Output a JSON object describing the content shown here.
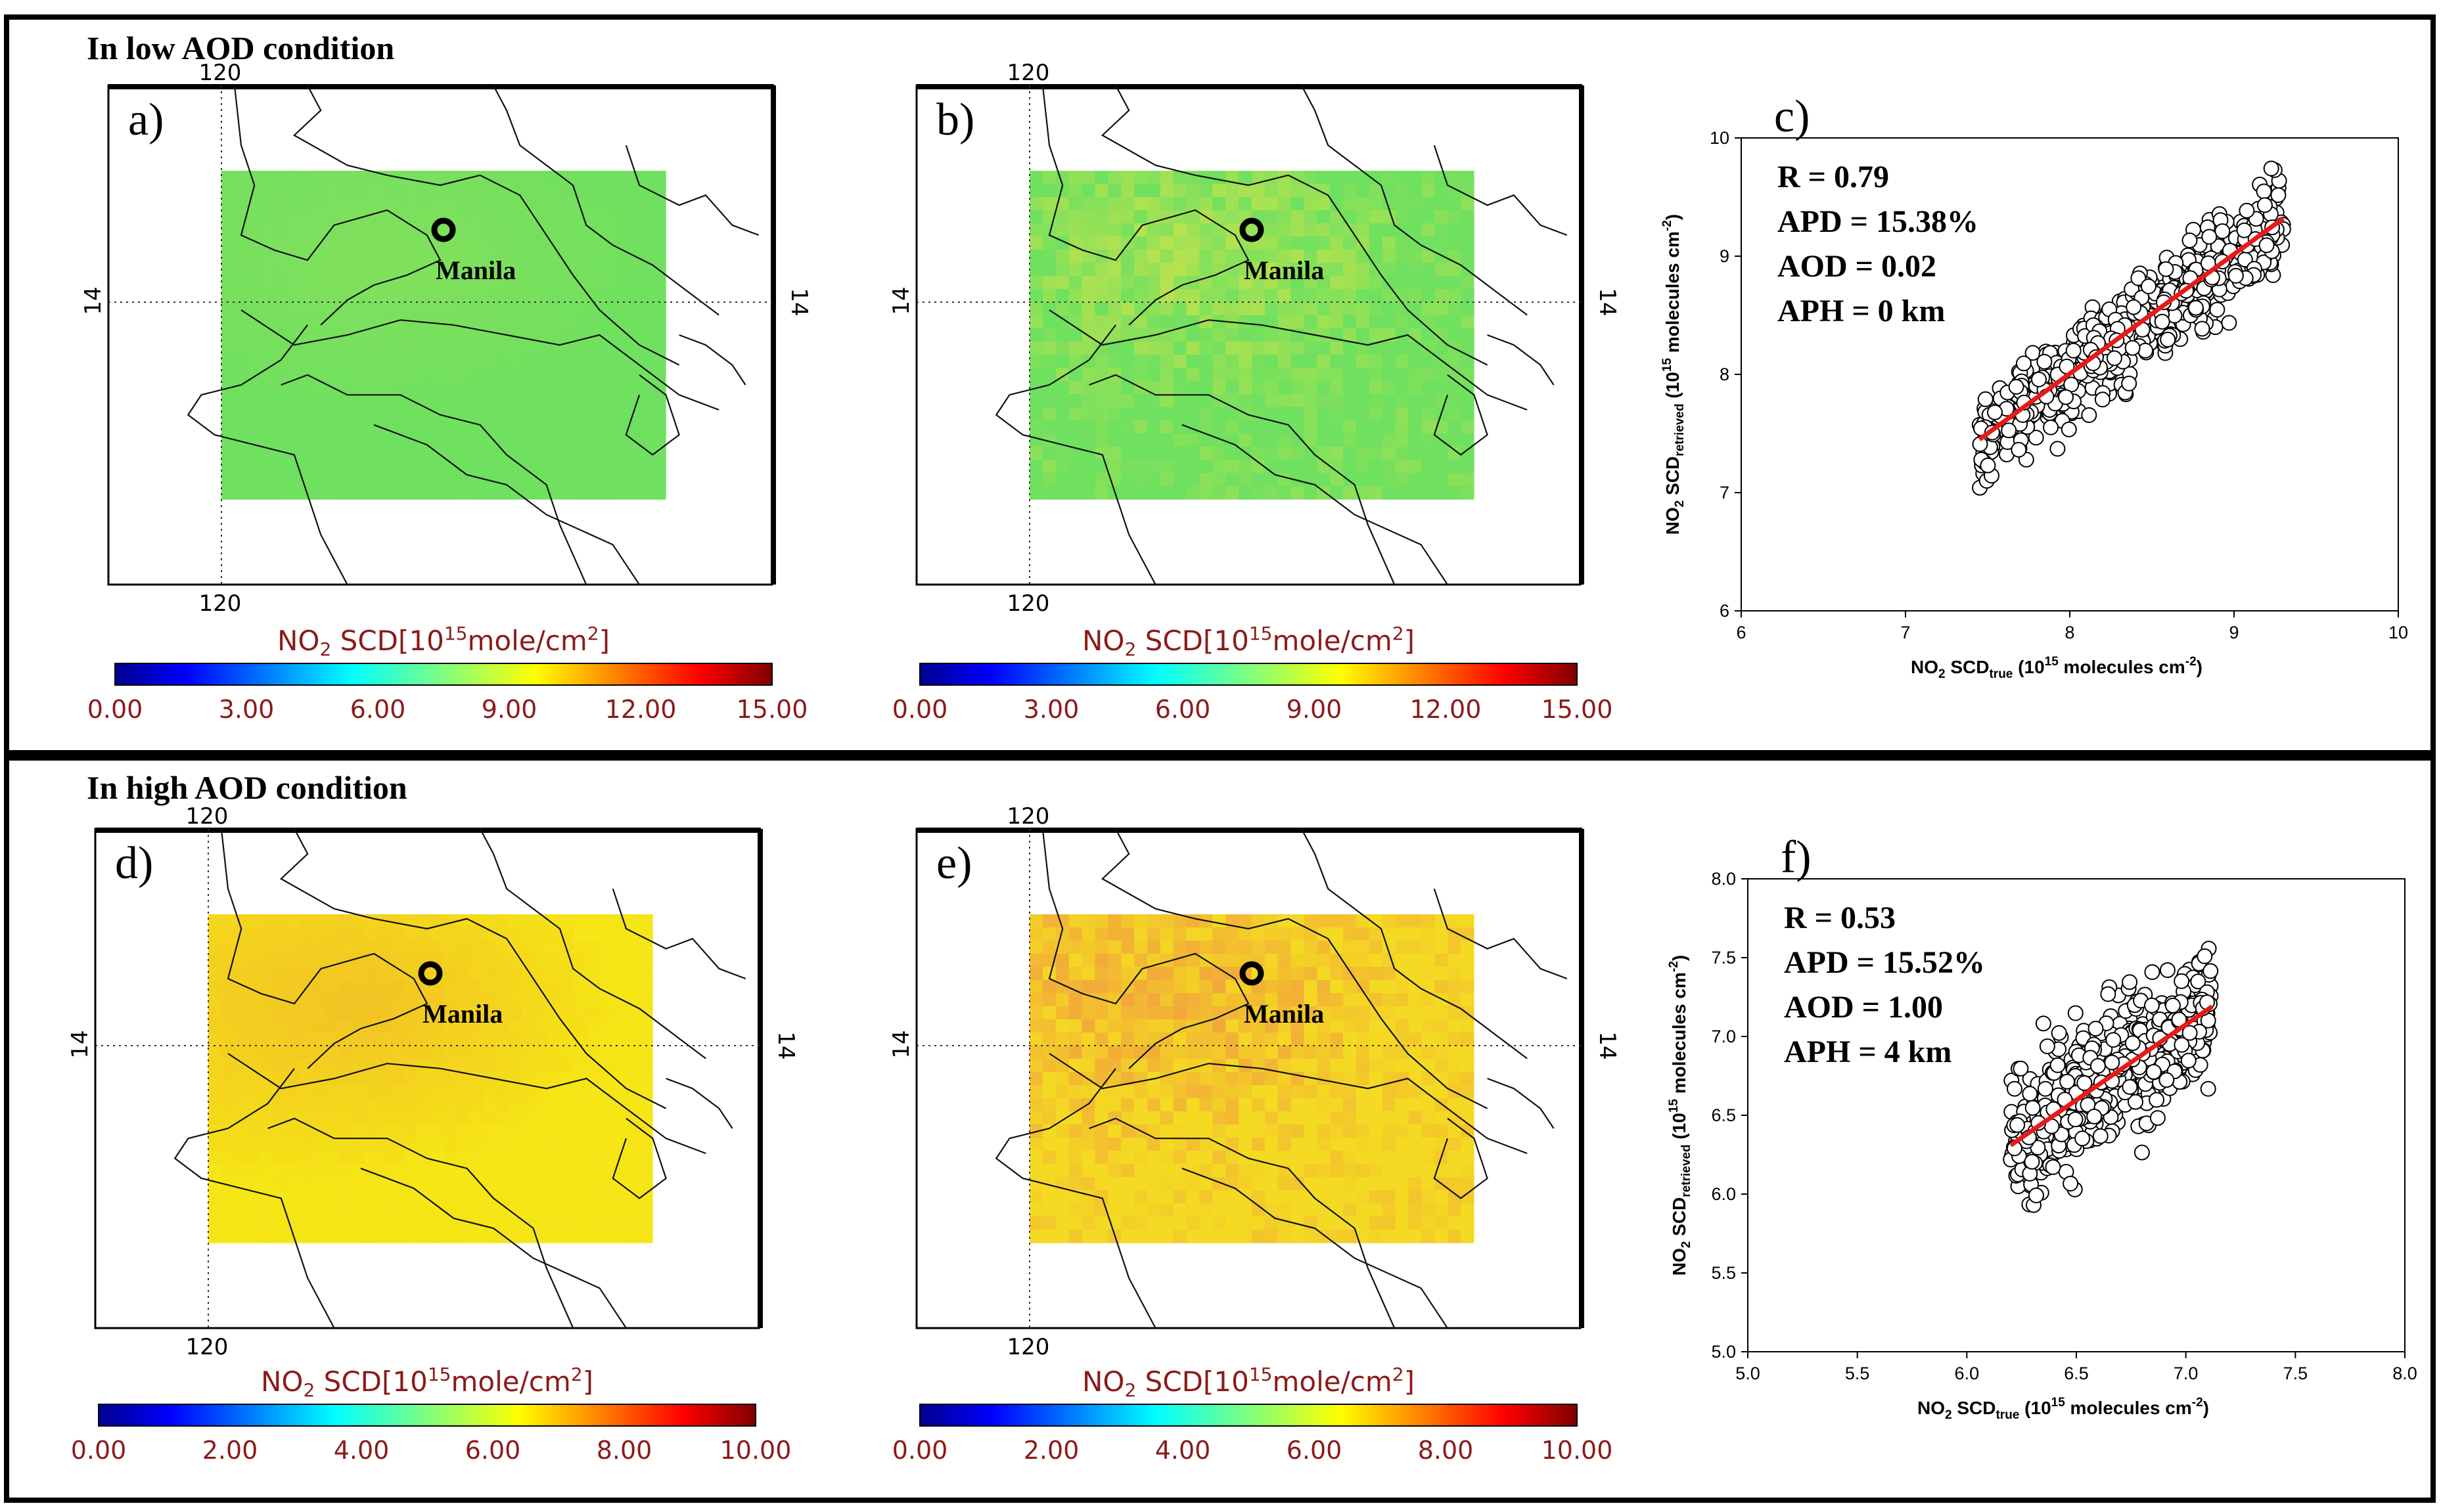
{
  "sections": [
    {
      "title": "In low AOD condition"
    },
    {
      "title": "In high AOD condition"
    }
  ],
  "maps": [
    {
      "label": "a)",
      "lon_label": "120",
      "lat_label": "14",
      "city": "Manila",
      "fill": "#6fe05f",
      "fill2": "#88e05a",
      "noisy": false,
      "colorbar": {
        "title_main": "NO",
        "title_sub": "2",
        "title_rest": " SCD[10",
        "title_sup": "15",
        "title_unit": "mole/cm",
        "title_sup2": "2",
        "title_end": "]",
        "ticks": [
          "0.00",
          "3.00",
          "6.00",
          "9.00",
          "12.00",
          "15.00"
        ]
      }
    },
    {
      "label": "b)",
      "lon_label": "120",
      "lat_label": "14",
      "city": "Manila",
      "fill": "#6fe05f",
      "fill2": "#b6e24f",
      "noisy": true,
      "colorbar": {
        "title_main": "NO",
        "title_sub": "2",
        "title_rest": " SCD[10",
        "title_sup": "15",
        "title_unit": "mole/cm",
        "title_sup2": "2",
        "title_end": "]",
        "ticks": [
          "0.00",
          "3.00",
          "6.00",
          "9.00",
          "12.00",
          "15.00"
        ]
      }
    },
    {
      "label": "d)",
      "lon_label": "120",
      "lat_label": "14",
      "city": "Manila",
      "fill": "#f6e616",
      "fill2": "#f0b42a",
      "noisy": false,
      "colorbar": {
        "title_main": "NO",
        "title_sub": "2",
        "title_rest": " SCD[10",
        "title_sup": "15",
        "title_unit": "mole/cm",
        "title_sup2": "2",
        "title_end": "]",
        "ticks": [
          "0.00",
          "2.00",
          "4.00",
          "6.00",
          "8.00",
          "10.00"
        ]
      }
    },
    {
      "label": "e)",
      "lon_label": "120",
      "lat_label": "14",
      "city": "Manila",
      "fill": "#f4da22",
      "fill2": "#f2a93a",
      "noisy": true,
      "colorbar": {
        "title_main": "NO",
        "title_sub": "2",
        "title_rest": " SCD[10",
        "title_sup": "15",
        "title_unit": "mole/cm",
        "title_sup2": "2",
        "title_end": "]",
        "ticks": [
          "0.00",
          "2.00",
          "4.00",
          "6.00",
          "8.00",
          "10.00"
        ]
      }
    }
  ],
  "chart_data": [
    {
      "type": "scatter",
      "label": "c)",
      "xlim": [
        6,
        10
      ],
      "ylim": [
        6,
        10
      ],
      "xticks": [
        "6",
        "7",
        "8",
        "9",
        "10"
      ],
      "yticks": [
        "6",
        "7",
        "8",
        "9",
        "10"
      ],
      "xlabel": {
        "main": "NO",
        "sub1": "2",
        "mid": " SCD",
        "sub2": "true",
        "rest": " (10",
        "sup": "15",
        "unit": " molecules cm",
        "sup2": "-2",
        "end": ")"
      },
      "ylabel": {
        "main": "NO",
        "sub1": "2",
        "mid": " SCD",
        "sub2": "retrieved",
        "rest": " (10",
        "sup": "15",
        "unit": " molecules cm",
        "sup2": "-2",
        "end": ")"
      },
      "stats": [
        "R = 0.79",
        "APD = 15.38%",
        "AOD = 0.02",
        "APH = 0 km"
      ],
      "fit_line": {
        "x": [
          7.45,
          9.3
        ],
        "y": [
          7.45,
          9.32
        ]
      },
      "cloud": {
        "x_min": 7.45,
        "x_max": 9.3,
        "slope": 1.0,
        "intercept": 0.0,
        "spread": 0.42,
        "n": 650
      },
      "line_color": "#e8191a"
    },
    {
      "type": "scatter",
      "label": "f)",
      "xlim": [
        5.0,
        8.0
      ],
      "ylim": [
        5.0,
        8.0
      ],
      "xticks": [
        "5.0",
        "5.5",
        "6.0",
        "6.5",
        "7.0",
        "7.5",
        "8.0"
      ],
      "yticks": [
        "5.0",
        "5.5",
        "6.0",
        "6.5",
        "7.0",
        "7.5",
        "8.0"
      ],
      "xlabel": {
        "main": "NO",
        "sub1": "2",
        "mid": " SCD",
        "sub2": "true",
        "rest": " (10",
        "sup": "15",
        "unit": " molecules cm",
        "sup2": "-2",
        "end": ")"
      },
      "ylabel": {
        "main": "NO",
        "sub1": "2",
        "mid": " SCD",
        "sub2": "retrieved",
        "rest": " (10",
        "sup": "15",
        "unit": " molecules cm",
        "sup2": "-2",
        "end": ")"
      },
      "stats": [
        "R = 0.53",
        "APD = 15.52%",
        "AOD = 1.00",
        "APH = 4 km"
      ],
      "fit_line": {
        "x": [
          6.2,
          7.12
        ],
        "y": [
          6.31,
          7.19
        ]
      },
      "cloud": {
        "x_min": 6.2,
        "x_max": 7.12,
        "slope": 0.96,
        "intercept": 0.36,
        "spread": 0.42,
        "n": 650
      },
      "line_color": "#e8191a"
    }
  ]
}
